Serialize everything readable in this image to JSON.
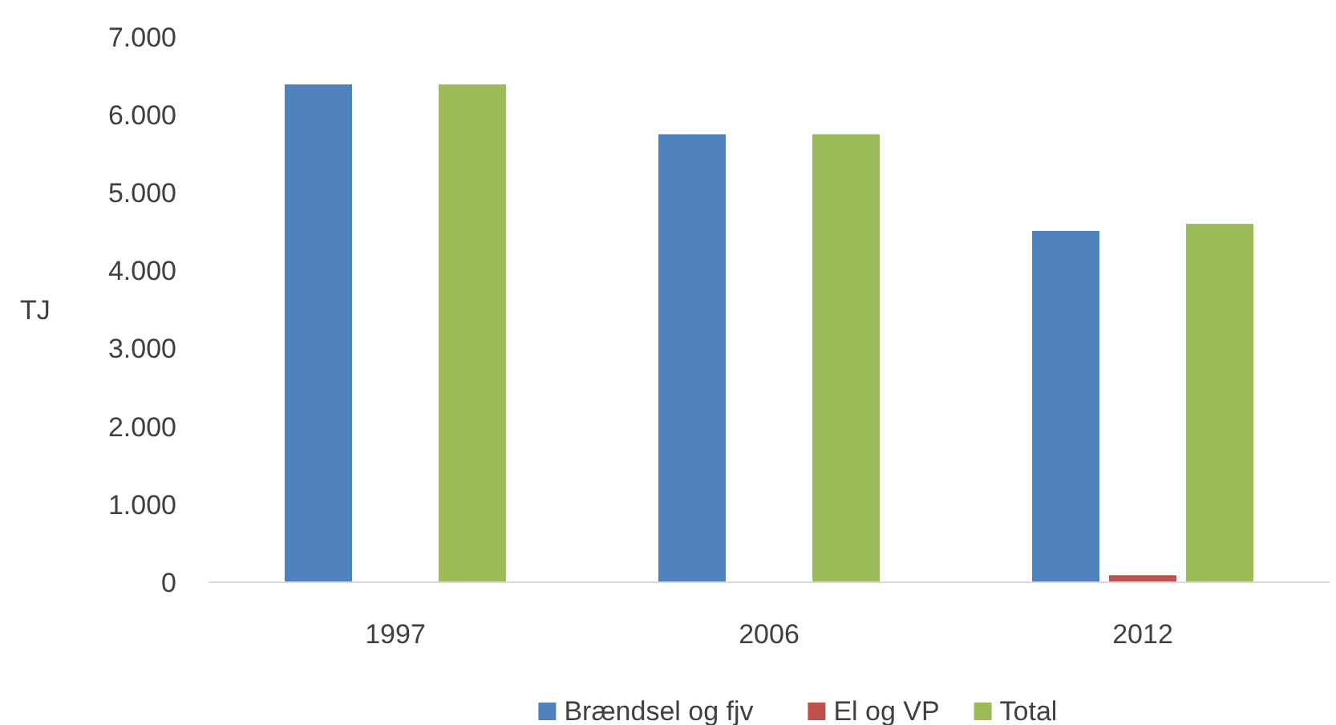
{
  "chart_data": {
    "type": "bar",
    "ylabel": "TJ",
    "categories": [
      "1997",
      "2006",
      "2012"
    ],
    "series": [
      {
        "name": "Brændsel og fjv",
        "color": "#4f81bd",
        "values": [
          6390,
          5750,
          4510
        ]
      },
      {
        "name": "El og VP",
        "color": "#c0504d",
        "values": [
          0,
          0,
          90
        ]
      },
      {
        "name": "Total",
        "color": "#9bbb59",
        "values": [
          6390,
          5750,
          4600
        ]
      }
    ],
    "ylim": [
      0,
      7000
    ],
    "yticks": [
      {
        "value": 0,
        "label": "0"
      },
      {
        "value": 1000,
        "label": "1.000"
      },
      {
        "value": 2000,
        "label": "2.000"
      },
      {
        "value": 3000,
        "label": "3.000"
      },
      {
        "value": 4000,
        "label": "4.000"
      },
      {
        "value": 5000,
        "label": "5.000"
      },
      {
        "value": 6000,
        "label": "6.000"
      },
      {
        "value": 7000,
        "label": "7.000"
      }
    ],
    "grid": false,
    "legend": "bottom"
  }
}
